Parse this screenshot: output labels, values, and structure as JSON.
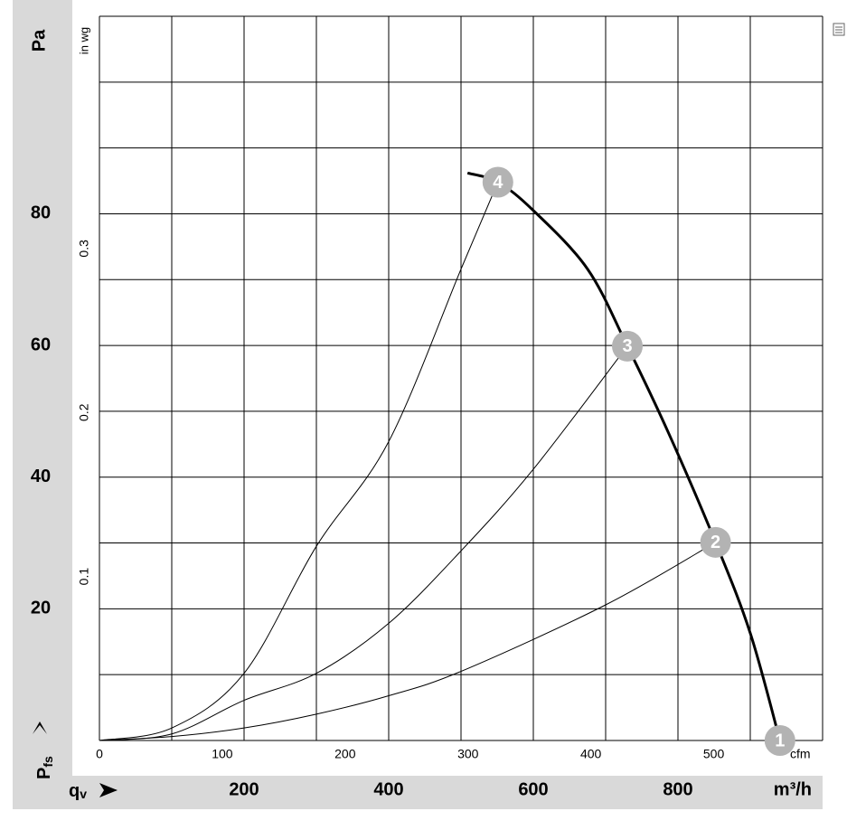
{
  "chart_data": {
    "type": "line",
    "y_label_top": "Pa",
    "y2_label": "in wg",
    "x2_label": "cfm",
    "x_label_right": "m³/h",
    "y_label": {
      "symbol": "P",
      "subscript": "fs"
    },
    "x_label": {
      "symbol": "q",
      "subscript": "v"
    },
    "xlim": [
      0,
      1000
    ],
    "ylim": [
      0,
      110
    ],
    "xticks": [
      200,
      400,
      600,
      800
    ],
    "yticks": [
      20,
      40,
      60,
      80
    ],
    "xgrid": [
      0,
      100,
      200,
      300,
      400,
      500,
      600,
      700,
      800,
      900,
      1000
    ],
    "ygrid": [
      0,
      10,
      20,
      30,
      40,
      50,
      60,
      70,
      80,
      90,
      100,
      110
    ],
    "x2lim": [
      0,
      588.6
    ],
    "x2ticks": [
      0,
      100,
      200,
      300,
      400,
      500
    ],
    "y2lim": [
      0,
      0.4416
    ],
    "y2ticks": [
      0.1,
      0.2,
      0.3
    ],
    "grid": true,
    "series": [
      {
        "color": "#000000",
        "width": 3,
        "x": [
          509,
          551,
          600,
          675,
          730,
          787,
          852,
          900,
          941
        ],
        "values": [
          86.2,
          84.8,
          80.5,
          71.6,
          59.9,
          46.7,
          30.1,
          16.3,
          0
        ]
      },
      {
        "color": "#000000",
        "width": 1,
        "x": [
          0,
          100,
          200,
          300,
          400,
          500,
          551
        ],
        "values": [
          0,
          1.9,
          10.2,
          29.5,
          45.4,
          71.6,
          84.8
        ]
      },
      {
        "color": "#000000",
        "width": 1,
        "x": [
          0,
          100,
          200,
          300,
          400,
          500,
          600,
          730
        ],
        "values": [
          0,
          1,
          6.1,
          10.2,
          17.8,
          28.8,
          41.2,
          59.9
        ]
      },
      {
        "color": "#000000",
        "width": 1,
        "x": [
          0,
          100,
          200,
          300,
          400,
          500,
          700,
          852
        ],
        "values": [
          0,
          0.6,
          1.9,
          4,
          6.8,
          10.5,
          20.6,
          30.1
        ]
      }
    ],
    "operating_points": [
      {
        "label": "1",
        "x": 941,
        "y": 0
      },
      {
        "label": "2",
        "x": 852,
        "y": 30.1
      },
      {
        "label": "3",
        "x": 730,
        "y": 59.9
      },
      {
        "label": "4",
        "x": 551,
        "y": 84.8
      }
    ]
  }
}
